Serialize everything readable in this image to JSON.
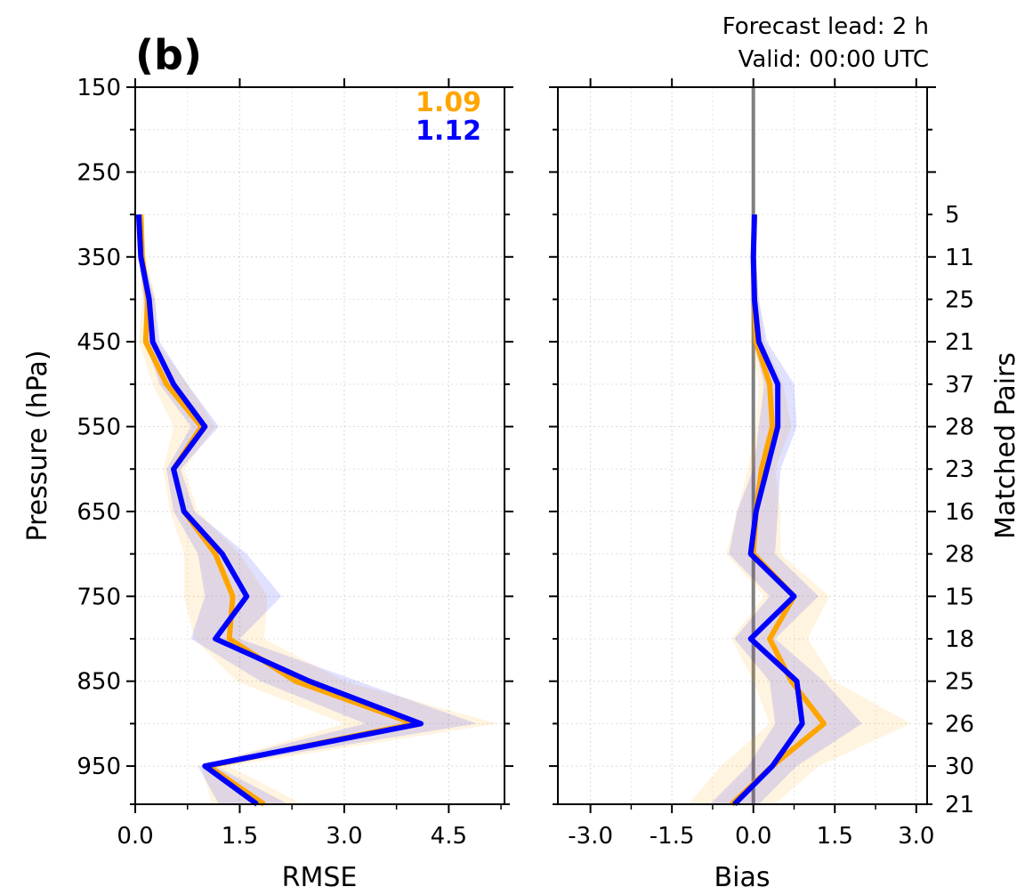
{
  "panel_label": "(b)",
  "annotation": {
    "line1": "Forecast lead: 2 h",
    "line2": "Valid: 00:00 UTC"
  },
  "colors": {
    "orange": "#FFA500",
    "blue": "#0000FF",
    "zero_line": "#808080",
    "grid": "#DDDDDD"
  },
  "chart_data": [
    {
      "type": "line",
      "name": "rmse-panel",
      "xlabel": "RMSE",
      "ylabel": "Pressure (hPa)",
      "xlim": [
        0.0,
        5.3
      ],
      "ylim": [
        995,
        150
      ],
      "xticks": [
        "0.0",
        "1.5",
        "3.0",
        "4.5"
      ],
      "xtick_values": [
        0.0,
        1.5,
        3.0,
        4.5
      ],
      "yticks": [
        150,
        250,
        350,
        450,
        550,
        650,
        750,
        850,
        950
      ],
      "grid": true,
      "pressure": [
        300,
        350,
        400,
        450,
        500,
        550,
        600,
        650,
        700,
        750,
        800,
        850,
        900,
        950,
        995
      ],
      "series": [
        {
          "color": "#FFA500",
          "values": [
            0.08,
            0.1,
            0.18,
            0.15,
            0.45,
            0.95,
            0.55,
            0.7,
            1.15,
            1.4,
            1.35,
            2.3,
            4.0,
            1.05,
            1.85
          ],
          "lower": [
            0.05,
            0.06,
            0.1,
            0.05,
            0.25,
            0.55,
            0.4,
            0.5,
            0.7,
            0.7,
            0.85,
            1.45,
            3.0,
            0.95,
            1.1
          ],
          "upper": [
            0.12,
            0.15,
            0.3,
            0.3,
            0.75,
            1.15,
            0.7,
            0.9,
            1.5,
            1.9,
            1.85,
            3.0,
            5.2,
            1.35,
            2.4
          ],
          "summary": "1.09"
        },
        {
          "color": "#0000FF",
          "values": [
            0.05,
            0.08,
            0.2,
            0.25,
            0.55,
            1.0,
            0.55,
            0.7,
            1.25,
            1.6,
            1.15,
            2.5,
            4.1,
            1.0,
            1.75
          ],
          "lower": [
            0.03,
            0.05,
            0.12,
            0.15,
            0.35,
            0.8,
            0.45,
            0.55,
            0.9,
            1.0,
            0.8,
            1.8,
            3.3,
            0.9,
            1.2
          ],
          "upper": [
            0.08,
            0.12,
            0.28,
            0.35,
            0.75,
            1.2,
            0.65,
            0.85,
            1.6,
            2.1,
            1.5,
            3.2,
            4.9,
            1.15,
            2.2
          ],
          "summary": "1.12"
        }
      ]
    },
    {
      "type": "line",
      "name": "bias-panel",
      "xlabel": "Bias",
      "ylabel2": "Matched Pairs",
      "xlim": [
        -3.6,
        3.2
      ],
      "ylim": [
        995,
        150
      ],
      "xticks": [
        "-3.0",
        "-1.5",
        "0.0",
        "1.5",
        "3.0"
      ],
      "xtick_values": [
        -3.0,
        -1.5,
        0.0,
        1.5,
        3.0
      ],
      "grid": true,
      "zero_line": 0.0,
      "pressure": [
        300,
        350,
        400,
        450,
        500,
        550,
        600,
        650,
        700,
        750,
        800,
        850,
        900,
        950,
        995
      ],
      "matched_pairs": [
        "5",
        "11",
        "25",
        "21",
        "37",
        "28",
        "23",
        "16",
        "28",
        "15",
        "18",
        "25",
        "26",
        "30",
        "21"
      ],
      "series": [
        {
          "color": "#FFA500",
          "values": [
            0.02,
            0.0,
            0.02,
            0.05,
            0.3,
            0.35,
            0.15,
            0.05,
            0.0,
            0.75,
            0.3,
            0.7,
            1.3,
            0.35,
            -0.4
          ],
          "lower": [
            -0.02,
            -0.05,
            -0.05,
            -0.05,
            0.1,
            0.05,
            -0.1,
            -0.3,
            -0.5,
            0.2,
            -0.4,
            0.0,
            0.3,
            -0.6,
            -1.2
          ],
          "upper": [
            0.06,
            0.05,
            0.1,
            0.2,
            0.55,
            0.7,
            0.4,
            0.5,
            0.5,
            1.4,
            1.0,
            1.5,
            2.9,
            1.2,
            0.4
          ]
        },
        {
          "color": "#0000FF",
          "values": [
            0.02,
            0.0,
            0.02,
            0.1,
            0.45,
            0.45,
            0.25,
            0.05,
            -0.05,
            0.75,
            -0.05,
            0.8,
            0.9,
            0.35,
            -0.35
          ],
          "lower": [
            -0.02,
            -0.05,
            -0.05,
            0.0,
            0.2,
            0.1,
            0.0,
            -0.3,
            -0.45,
            0.3,
            -0.35,
            0.3,
            0.4,
            -0.1,
            -0.8
          ],
          "upper": [
            0.06,
            0.05,
            0.1,
            0.25,
            0.75,
            0.8,
            0.5,
            0.45,
            0.4,
            1.2,
            0.4,
            1.3,
            2.0,
            0.8,
            0.1
          ]
        }
      ]
    }
  ]
}
